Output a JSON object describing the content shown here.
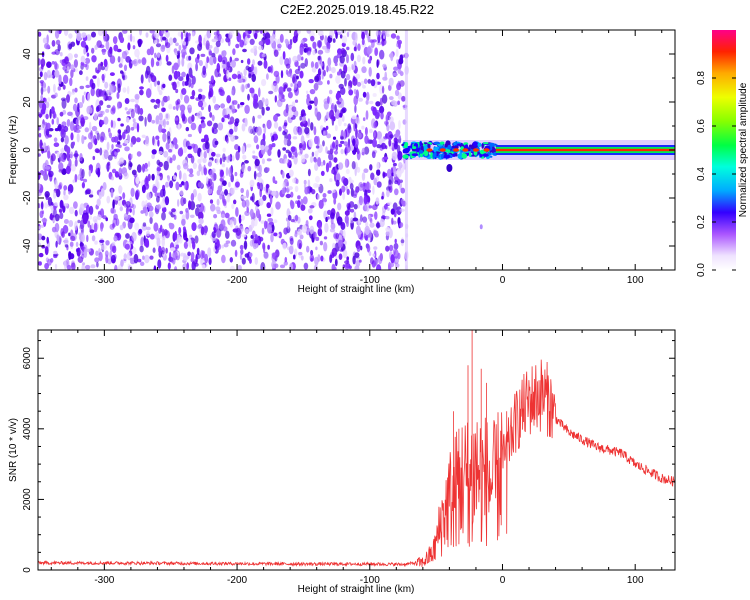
{
  "title": "C2E2.2025.019.18.45.R22",
  "chart_data": [
    {
      "type": "heatmap",
      "name": "spectrogram",
      "title": "C2E2.2025.019.18.45.R22",
      "xlabel": "Height of straight line (km)",
      "ylabel": "Frequency (Hz)",
      "xlim": [
        -350,
        130
      ],
      "ylim": [
        -50,
        50
      ],
      "xticks": [
        -300,
        -200,
        -100,
        0,
        100
      ],
      "yticks": [
        -40,
        -20,
        0,
        20,
        40
      ],
      "noise_region_x": [
        -350,
        -72
      ],
      "signal_line_frequency_hz": 0,
      "signal_band_x": [
        -75,
        130
      ],
      "colorbar": {
        "label": "Normalized spectral amplitude",
        "range": [
          0,
          1
        ],
        "ticks": [
          0.0,
          0.2,
          0.4,
          0.6,
          0.8
        ],
        "tick_labels": [
          "0.0",
          "0.2",
          "0.4",
          "0.6",
          "0.8"
        ]
      }
    },
    {
      "type": "line",
      "name": "snr",
      "xlabel": "Height of straight line (km)",
      "ylabel": "SNR (10 * v/v)",
      "xlim": [
        -350,
        130
      ],
      "ylim": [
        0,
        6800
      ],
      "xticks": [
        -300,
        -200,
        -100,
        0,
        100
      ],
      "yticks": [
        0,
        2000,
        4000,
        6000
      ],
      "series": [
        {
          "name": "SNR",
          "color": "#ee3333",
          "x": [
            -350,
            -300,
            -250,
            -200,
            -150,
            -100,
            -75,
            -60,
            -52,
            -45,
            -40,
            -35,
            -30,
            -25,
            -20,
            -15,
            -10,
            -5,
            0,
            5,
            10,
            20,
            30,
            35,
            40,
            50,
            60,
            70,
            80,
            90,
            100,
            110,
            120,
            130
          ],
          "y": [
            200,
            200,
            190,
            180,
            170,
            170,
            160,
            220,
            500,
            1500,
            2000,
            2300,
            2600,
            2500,
            2900,
            2600,
            2500,
            2400,
            3100,
            3600,
            4200,
            4800,
            5000,
            4800,
            4300,
            3900,
            3700,
            3500,
            3400,
            3300,
            3000,
            2800,
            2600,
            2500
          ],
          "spikes": [
            {
              "x": -37,
              "y": 4500
            },
            {
              "x": -33,
              "y": 4000
            },
            {
              "x": -32,
              "y": 3500
            },
            {
              "x": -26,
              "y": 5800
            },
            {
              "x": -23,
              "y": 6800
            },
            {
              "x": -20,
              "y": 5900
            },
            {
              "x": -16,
              "y": 5700
            },
            {
              "x": -12,
              "y": 5300
            },
            {
              "x": -8,
              "y": 4700
            },
            {
              "x": 3,
              "y": 4500
            }
          ]
        }
      ]
    }
  ]
}
